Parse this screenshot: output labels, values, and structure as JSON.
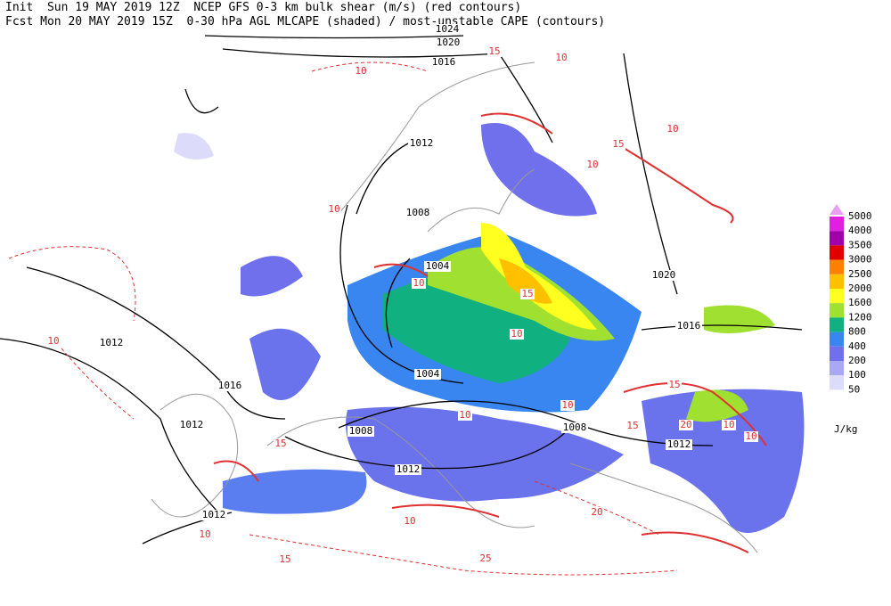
{
  "header": {
    "lines": [
      "Init  Sun 19 MAY 2019 12Z  NCEP GFS 0-3 km bulk shear (m/s) (red contours)",
      "Fcst Mon 20 MAY 2019 15Z  0-30 hPa AGL MLCAPE (shaded) / most-unstable CAPE (contours)"
    ]
  },
  "legend": {
    "unit": "J/kg",
    "levels": [
      {
        "label": "5000",
        "color": "#e8a0f0"
      },
      {
        "label": "4000",
        "color": "#e020e0"
      },
      {
        "label": "3500",
        "color": "#a000a8"
      },
      {
        "label": "3000",
        "color": "#e00000"
      },
      {
        "label": "2500",
        "color": "#ff8000"
      },
      {
        "label": "2000",
        "color": "#ffc000"
      },
      {
        "label": "1600",
        "color": "#ffff20"
      },
      {
        "label": "1200",
        "color": "#a0e030"
      },
      {
        "label": "800",
        "color": "#10b080"
      },
      {
        "label": "400",
        "color": "#3a86f0"
      },
      {
        "label": "200",
        "color": "#7070ec"
      },
      {
        "label": "100",
        "color": "#a8a8f4"
      },
      {
        "label": "50",
        "color": "#dcdcfa"
      }
    ]
  },
  "isobar_labels": [
    "1024",
    "1020",
    "1016",
    "1012",
    "1008",
    "1004",
    "1016",
    "1012",
    "1012",
    "1012",
    "1008",
    "1004",
    "1012",
    "1008",
    "1012",
    "1016",
    "1020"
  ],
  "shear_labels": [
    "10",
    "10",
    "15",
    "10",
    "10",
    "15",
    "10",
    "10",
    "10",
    "10",
    "10",
    "10",
    "15",
    "10",
    "15",
    "20",
    "15",
    "10",
    "25",
    "15",
    "10",
    "10",
    "15",
    "20"
  ]
}
